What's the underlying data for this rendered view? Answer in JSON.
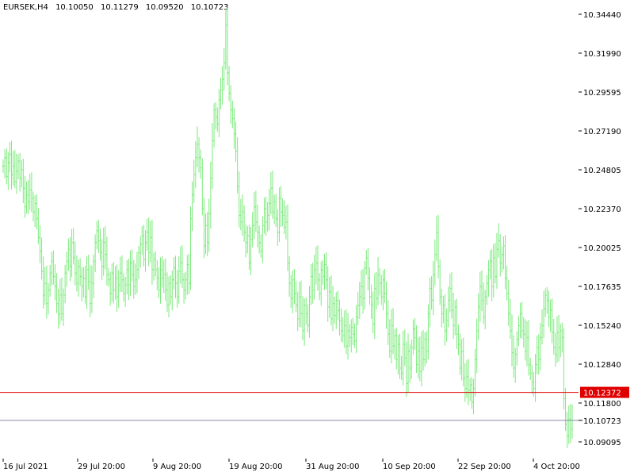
{
  "header": {
    "symbol": "EURSEK,H4",
    "open": "10.10050",
    "high": "10.11279",
    "low": "10.09520",
    "close": "10.10723"
  },
  "colors": {
    "bars": "#7cea7c",
    "background": "#ffffff",
    "bid_line": "#e00000",
    "ask_line": "#8a8aa8",
    "text": "#000000"
  },
  "chart_data": {
    "type": "ohlc-bar",
    "title": "EURSEK,H4",
    "xlabel": "",
    "ylabel": "",
    "ylim": [
      10.0875,
      10.3465
    ],
    "grid": false,
    "x_ticks": [
      "16 Jul 2021",
      "29 Jul 20:00",
      "9 Aug 20:00",
      "19 Aug 20:00",
      "31 Aug 20:00",
      "10 Sep 20:00",
      "22 Sep 20:00",
      "4 Oct 20:00"
    ],
    "y_ticks": [
      "10.34440",
      "10.31990",
      "10.29595",
      "10.27190",
      "10.24805",
      "10.22370",
      "10.20025",
      "10.17635",
      "10.15240",
      "10.12840",
      "10.11800",
      "10.09095"
    ],
    "horizontal_lines": [
      {
        "name": "bid",
        "value": 10.1237,
        "label": "10.12372"
      },
      {
        "name": "last",
        "value": 10.1072,
        "label": "10.10723"
      }
    ],
    "close_series": [
      10.257,
      10.262,
      10.251,
      10.259,
      10.264,
      10.252,
      10.257,
      10.248,
      10.254,
      10.26,
      10.25,
      10.255,
      10.244,
      10.233,
      10.24,
      10.236,
      10.243,
      10.238,
      10.23,
      10.235,
      10.226,
      10.215,
      10.207,
      10.195,
      10.181,
      10.188,
      10.176,
      10.184,
      10.194,
      10.201,
      10.192,
      10.186,
      10.176,
      10.17,
      10.181,
      10.17,
      10.181,
      10.194,
      10.201,
      10.208,
      10.198,
      10.212,
      10.203,
      10.194,
      10.188,
      10.198,
      10.192,
      10.186,
      10.191,
      10.18,
      10.196,
      10.189,
      10.176,
      10.188,
      10.201,
      10.212,
      10.219,
      10.213,
      10.206,
      10.198,
      10.212,
      10.205,
      10.193,
      10.19,
      10.182,
      10.194,
      10.184,
      10.191,
      10.18,
      10.187,
      10.194,
      10.19,
      10.182,
      10.187,
      10.196,
      10.187,
      10.2,
      10.193,
      10.186,
      10.19,
      10.196,
      10.206,
      10.211,
      10.216,
      10.202,
      10.212,
      10.218,
      10.206,
      10.215,
      10.196,
      10.202,
      10.196,
      10.191,
      10.184,
      10.196,
      10.191,
      10.193,
      10.184,
      10.175,
      10.188,
      10.18,
      10.19,
      10.197,
      10.188,
      10.18,
      10.195,
      10.2,
      10.19,
      10.184,
      10.19,
      10.199,
      10.188,
      10.226,
      10.24,
      10.252,
      10.262,
      10.27,
      10.262,
      10.256,
      10.232,
      10.21,
      10.222,
      10.212,
      10.229,
      10.25,
      10.272,
      10.29,
      10.286,
      10.282,
      10.296,
      10.302,
      10.308,
      10.318,
      10.34,
      10.312,
      10.3,
      10.29,
      10.285,
      10.276,
      10.266,
      10.245,
      10.228,
      10.224,
      10.23,
      10.218,
      10.212,
      10.216,
      10.2,
      10.214,
      10.222,
      10.233,
      10.224,
      10.218,
      10.212,
      10.207,
      10.222,
      10.232,
      10.224,
      10.228,
      10.235,
      10.244,
      10.23,
      10.236,
      10.226,
      10.218,
      10.238,
      10.23,
      10.228,
      10.221,
      10.224,
      10.2,
      10.188,
      10.179,
      10.19,
      10.182,
      10.175,
      10.167,
      10.18,
      10.17,
      10.16,
      10.175,
      10.17,
      10.163,
      10.18,
      10.192,
      10.184,
      10.196,
      10.2,
      10.19,
      10.182,
      10.196,
      10.192,
      10.199,
      10.19,
      10.174,
      10.183,
      10.167,
      10.176,
      10.169,
      10.178,
      10.172,
      10.166,
      10.16,
      10.157,
      10.163,
      10.151,
      10.16,
      10.156,
      10.162,
      10.158,
      10.154,
      10.168,
      10.175,
      10.18,
      10.186,
      10.179,
      10.197,
      10.203,
      10.191,
      10.18,
      10.175,
      10.164,
      10.185,
      10.179,
      10.193,
      10.188,
      10.18,
      10.19,
      10.182,
      10.17,
      10.158,
      10.148,
      10.163,
      10.151,
      10.157,
      10.143,
      10.152,
      10.138,
      10.135,
      10.152,
      10.144,
      10.129,
      10.148,
      10.138,
      10.15,
      10.161,
      10.156,
      10.14,
      10.148,
      10.136,
      10.15,
      10.143,
      10.155,
      10.148,
      10.17,
      10.185,
      10.178,
      10.193,
      10.205,
      10.218,
      10.198,
      10.18,
      10.17,
      10.175,
      10.16,
      10.166,
      10.178,
      10.185,
      10.172,
      10.163,
      10.174,
      10.158,
      10.152,
      10.138,
      10.148,
      10.132,
      10.126,
      10.133,
      10.125,
      10.128,
      10.118,
      10.126,
      10.143,
      10.16,
      10.174,
      10.186,
      10.178,
      10.168,
      10.18,
      10.188,
      10.196,
      10.201,
      10.186,
      10.203,
      10.192,
      10.208,
      10.213,
      10.2,
      10.205,
      10.21,
      10.191,
      10.182,
      10.17,
      10.16,
      10.147,
      10.138,
      10.146,
      10.155,
      10.163,
      10.17,
      10.16,
      10.158,
      10.148,
      10.156,
      10.14,
      10.135,
      10.13,
      10.126,
      10.14,
      10.15,
      10.143,
      10.156,
      10.163,
      10.173,
      10.181,
      10.178,
      10.168,
      10.172,
      10.159,
      10.15,
      10.146,
      10.159,
      10.15,
      10.16,
      10.156,
      10.12,
      10.105,
      10.098,
      10.108,
      10.102,
      10.107
    ]
  }
}
